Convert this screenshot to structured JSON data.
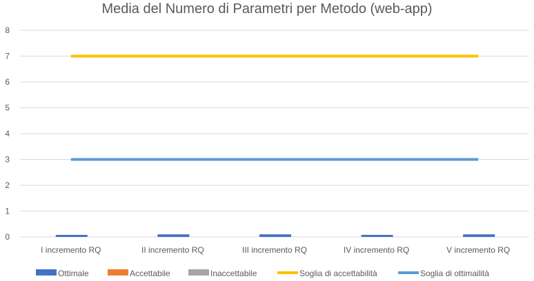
{
  "chart_data": {
    "type": "bar",
    "title": "Media del Numero di Parametri per Metodo (web-app)",
    "categories": [
      "I incremento RQ",
      "II incremento RQ",
      "III incremento RQ",
      "IV incremento RQ",
      "V incremento RQ"
    ],
    "ylim": [
      0,
      8
    ],
    "yticks": [
      "0",
      "1",
      "2",
      "3",
      "4",
      "5",
      "6",
      "7",
      "8"
    ],
    "grid": true,
    "legend_position": "bottom",
    "series": [
      {
        "name": "Ottimale",
        "kind": "bar",
        "color": "#4472C4",
        "values": [
          0.08,
          0.1,
          0.1,
          0.08,
          0.1
        ]
      },
      {
        "name": "Accettabile",
        "kind": "bar",
        "color": "#ED7D31",
        "values": [
          0,
          0,
          0,
          0,
          0
        ]
      },
      {
        "name": "Inaccettabile",
        "kind": "bar",
        "color": "#A5A5A5",
        "values": [
          0,
          0,
          0,
          0,
          0
        ]
      },
      {
        "name": "Soglia di accettabilità",
        "kind": "line",
        "color": "#FFC000",
        "values": [
          7,
          7,
          7,
          7,
          7
        ]
      },
      {
        "name": "Soglia di ottimailità",
        "kind": "line",
        "color": "#5B9BD5",
        "values": [
          3,
          3,
          3,
          3,
          3
        ]
      }
    ]
  }
}
